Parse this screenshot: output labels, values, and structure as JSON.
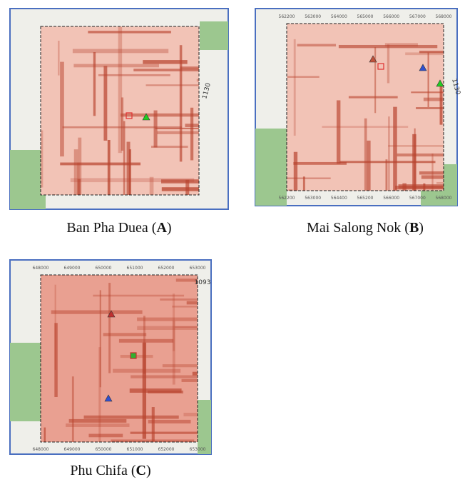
{
  "panels": [
    {
      "caption_open": "Ban Pha Duea (",
      "letter": "A",
      "caption_close": ")",
      "road_label": "1130"
    },
    {
      "caption_open": "Mai Salong Nok (",
      "letter": "B",
      "caption_close": ")",
      "road_label": "1130",
      "top_ticks": [
        562200,
        563000,
        564000,
        565000,
        566000,
        567000,
        568000
      ],
      "bottom_ticks": [
        562200,
        563000,
        564400,
        565200,
        566000,
        567000,
        568000
      ]
    },
    {
      "caption_open": "Phu Chifa (",
      "letter": "C",
      "caption_close": ")",
      "road_label": "1093",
      "top_ticks": [
        648000,
        649000,
        650000,
        651000,
        652000,
        653000
      ],
      "bottom_ticks": [
        648000,
        649000,
        650000,
        651000,
        652000,
        653000
      ]
    }
  ]
}
